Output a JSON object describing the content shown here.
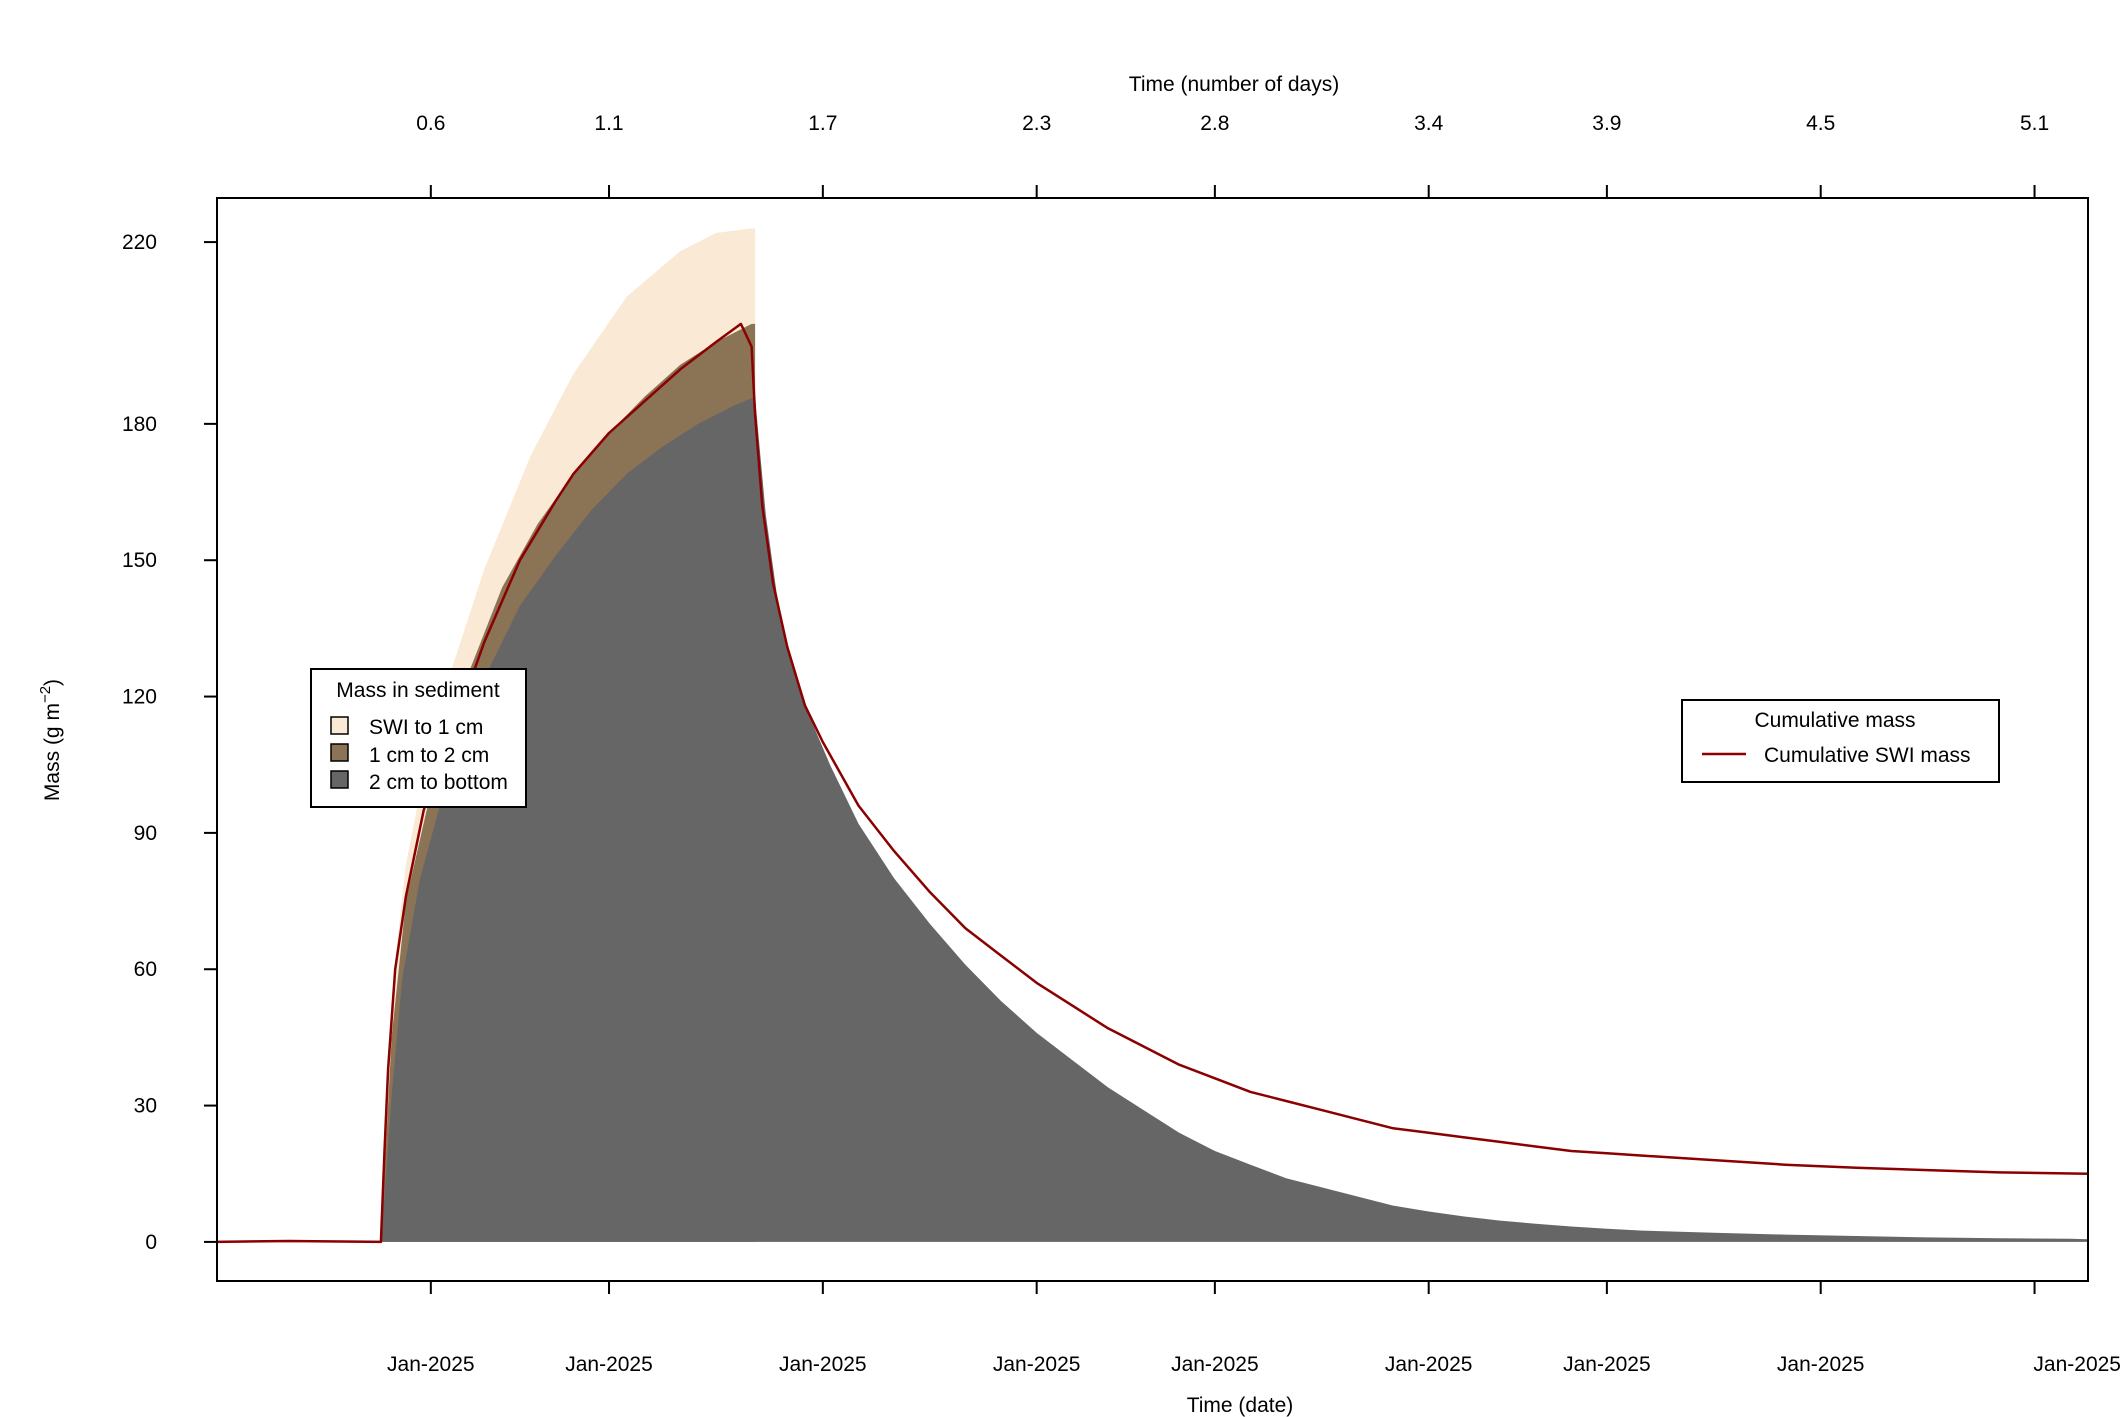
{
  "chart_data": {
    "type": "area",
    "xlabel_bottom": "Time (date)",
    "xlabel_top": "Time (number of days)",
    "ylabel_main": "Mass (g m",
    "ylabel_sup": "−2",
    "ylabel_close": ")",
    "xlim": [
      0,
      5.25
    ],
    "ylim": [
      -8.6,
      229.7
    ],
    "grid": false,
    "yticks": [
      0,
      30,
      60,
      90,
      120,
      150,
      180,
      220
    ],
    "top_ticks": [
      {
        "x": 0.6,
        "label": "0.6"
      },
      {
        "x": 1.1,
        "label": "1.1"
      },
      {
        "x": 1.7,
        "label": "1.7"
      },
      {
        "x": 2.3,
        "label": "2.3"
      },
      {
        "x": 2.8,
        "label": "2.8"
      },
      {
        "x": 3.4,
        "label": "3.4"
      },
      {
        "x": 3.9,
        "label": "3.9"
      },
      {
        "x": 4.5,
        "label": "4.5"
      },
      {
        "x": 5.1,
        "label": "5.1"
      }
    ],
    "bottom_ticks": [
      {
        "x": 0.6,
        "label": "Jan-2025"
      },
      {
        "x": 1.1,
        "label": "Jan-2025"
      },
      {
        "x": 1.7,
        "label": "Jan-2025"
      },
      {
        "x": 2.3,
        "label": "Jan-2025"
      },
      {
        "x": 2.8,
        "label": "Jan-2025"
      },
      {
        "x": 3.4,
        "label": "Jan-2025"
      },
      {
        "x": 3.9,
        "label": "Jan-2025"
      },
      {
        "x": 4.5,
        "label": "Jan-2025"
      },
      {
        "x": 5.1,
        "label": "Jan-2025"
      }
    ],
    "stack_series": [
      {
        "name": "SWI to 1 cm",
        "color": "#fae9d5",
        "points": [
          [
            0.46,
            0
          ],
          [
            0.47,
            15
          ],
          [
            0.48,
            35
          ],
          [
            0.5,
            62
          ],
          [
            0.53,
            83
          ],
          [
            0.58,
            103
          ],
          [
            0.65,
            124
          ],
          [
            0.75,
            148
          ],
          [
            0.88,
            173
          ],
          [
            1.0,
            191
          ],
          [
            1.15,
            208
          ],
          [
            1.3,
            218
          ],
          [
            1.4,
            222
          ],
          [
            1.5,
            223
          ],
          [
            1.51,
            223
          ]
        ]
      },
      {
        "name": "1 cm to 2 cm",
        "color": "#8b7355",
        "points": [
          [
            0.46,
            0
          ],
          [
            0.47,
            15
          ],
          [
            0.49,
            45
          ],
          [
            0.53,
            75
          ],
          [
            0.6,
            99
          ],
          [
            0.7,
            124
          ],
          [
            0.8,
            144
          ],
          [
            0.9,
            158
          ],
          [
            1.0,
            169
          ],
          [
            1.1,
            178
          ],
          [
            1.2,
            186
          ],
          [
            1.3,
            193
          ],
          [
            1.4,
            198
          ],
          [
            1.5,
            202
          ],
          [
            1.51,
            202
          ]
        ]
      },
      {
        "name": "2 cm to bottom",
        "color": "#666666",
        "points": [
          [
            0.46,
            0
          ],
          [
            0.47,
            10
          ],
          [
            0.49,
            32
          ],
          [
            0.52,
            58
          ],
          [
            0.57,
            80
          ],
          [
            0.65,
            103
          ],
          [
            0.75,
            124
          ],
          [
            0.85,
            140
          ],
          [
            0.95,
            151
          ],
          [
            1.05,
            161
          ],
          [
            1.15,
            169
          ],
          [
            1.25,
            175
          ],
          [
            1.35,
            180
          ],
          [
            1.45,
            184
          ],
          [
            1.51,
            186
          ],
          [
            1.52,
            177
          ],
          [
            1.54,
            160
          ],
          [
            1.57,
            143
          ],
          [
            1.6,
            131
          ],
          [
            1.65,
            118
          ],
          [
            1.72,
            105
          ],
          [
            1.8,
            92
          ],
          [
            1.9,
            80
          ],
          [
            2.0,
            70
          ],
          [
            2.1,
            61
          ],
          [
            2.2,
            53
          ],
          [
            2.3,
            46
          ],
          [
            2.4,
            40
          ],
          [
            2.5,
            34
          ],
          [
            2.6,
            29
          ],
          [
            2.7,
            24
          ],
          [
            2.8,
            20
          ],
          [
            2.9,
            17
          ],
          [
            3.0,
            14
          ],
          [
            3.1,
            12
          ],
          [
            3.2,
            10
          ],
          [
            3.3,
            8
          ],
          [
            3.4,
            6.7
          ],
          [
            3.5,
            5.6
          ],
          [
            3.6,
            4.7
          ],
          [
            3.7,
            4
          ],
          [
            3.8,
            3.4
          ],
          [
            3.9,
            2.9
          ],
          [
            4.0,
            2.5
          ],
          [
            4.2,
            2
          ],
          [
            4.4,
            1.6
          ],
          [
            4.6,
            1.3
          ],
          [
            4.8,
            1
          ],
          [
            5.0,
            0.8
          ],
          [
            5.2,
            0.7
          ],
          [
            5.25,
            0.6
          ]
        ]
      }
    ],
    "line_series": [
      {
        "name": "Cumulative SWI mass",
        "color": "#8b0000",
        "points": [
          [
            0,
            0
          ],
          [
            0.2,
            0.2
          ],
          [
            0.46,
            0
          ],
          [
            0.47,
            20
          ],
          [
            0.48,
            38
          ],
          [
            0.5,
            60
          ],
          [
            0.53,
            76
          ],
          [
            0.58,
            95
          ],
          [
            0.65,
            110
          ],
          [
            0.75,
            132
          ],
          [
            0.85,
            150
          ],
          [
            0.95,
            163
          ],
          [
            1.0,
            169
          ],
          [
            1.1,
            178
          ],
          [
            1.2,
            185
          ],
          [
            1.3,
            192
          ],
          [
            1.4,
            198
          ],
          [
            1.47,
            202
          ],
          [
            1.5,
            197
          ],
          [
            1.51,
            182
          ],
          [
            1.53,
            162
          ],
          [
            1.56,
            145
          ],
          [
            1.6,
            131
          ],
          [
            1.65,
            118
          ],
          [
            1.7,
            110
          ],
          [
            1.8,
            96
          ],
          [
            1.9,
            86
          ],
          [
            2.0,
            77
          ],
          [
            2.1,
            69
          ],
          [
            2.2,
            63
          ],
          [
            2.3,
            57
          ],
          [
            2.4,
            52
          ],
          [
            2.5,
            47
          ],
          [
            2.6,
            43
          ],
          [
            2.7,
            39
          ],
          [
            2.8,
            36
          ],
          [
            2.9,
            33
          ],
          [
            3.0,
            31
          ],
          [
            3.1,
            29
          ],
          [
            3.2,
            27
          ],
          [
            3.3,
            25
          ],
          [
            3.4,
            24
          ],
          [
            3.5,
            23
          ],
          [
            3.6,
            22
          ],
          [
            3.7,
            21
          ],
          [
            3.8,
            20
          ],
          [
            3.9,
            19.5
          ],
          [
            4.0,
            19
          ],
          [
            4.2,
            18
          ],
          [
            4.4,
            17
          ],
          [
            4.6,
            16.3
          ],
          [
            4.8,
            15.8
          ],
          [
            5.0,
            15.3
          ],
          [
            5.25,
            15
          ]
        ]
      }
    ],
    "legend_left": {
      "title": "Mass in sediment",
      "placement": "left-middle",
      "items": [
        {
          "label": "SWI to 1 cm",
          "color": "#fae9d5"
        },
        {
          "label": "1 cm to 2 cm",
          "color": "#8b7355"
        },
        {
          "label": "2 cm to bottom",
          "color": "#666666"
        }
      ]
    },
    "legend_right": {
      "title": "Cumulative mass",
      "placement": "right-middle",
      "items": [
        {
          "label": "Cumulative SWI mass",
          "color": "#8b0000"
        }
      ]
    }
  }
}
